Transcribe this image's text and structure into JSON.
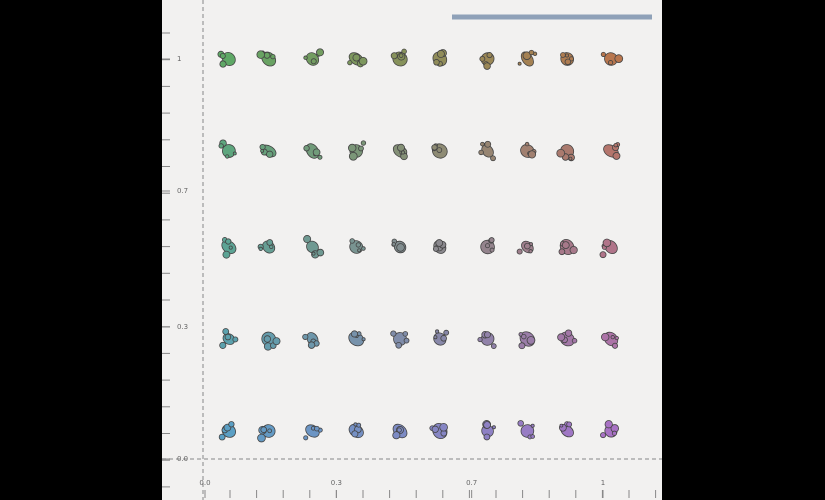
{
  "chart_data": {
    "type": "glyph-grid",
    "columns": [
      0.06,
      0.16,
      0.27,
      0.38,
      0.49,
      0.59,
      0.71,
      0.81,
      0.91,
      1.02
    ],
    "rows": [
      0.07,
      0.3,
      0.53,
      0.77,
      1.0
    ],
    "xlim": [
      -0.1,
      1.15
    ],
    "ylim": [
      -0.1,
      1.15
    ],
    "xticks": [
      {
        "value": 0,
        "label": "0.0"
      },
      {
        "value": 0.33,
        "label": "0.3"
      },
      {
        "value": 0.67,
        "label": "0.7"
      },
      1
    ],
    "yticks": [
      {
        "value": 0,
        "label": "0.0"
      },
      {
        "value": 0.33,
        "label": "0.3"
      },
      {
        "value": 0.67,
        "label": "0.7"
      },
      1
    ],
    "colors": {
      "bottom_left": "#5b9fc4",
      "top_left": "#5fa866",
      "bottom_right": "#a872c4",
      "top_right": "#b8764e"
    }
  }
}
